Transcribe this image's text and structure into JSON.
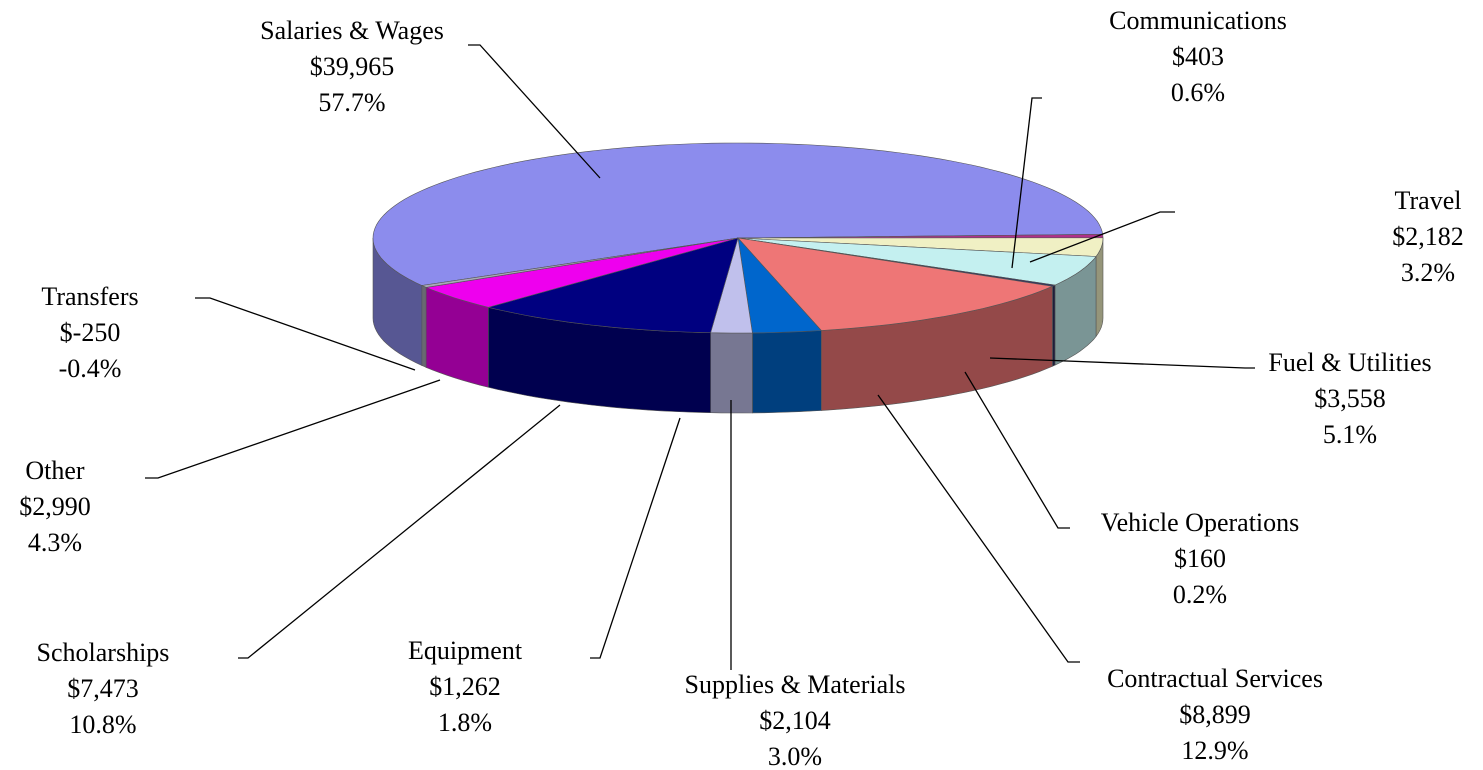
{
  "chart_data": {
    "type": "pie",
    "categories": [
      "Salaries & Wages",
      "Communications",
      "Travel",
      "Fuel & Utilities",
      "Vehicle Operations",
      "Contractual Services",
      "Supplies & Materials",
      "Equipment",
      "Scholarships",
      "Other",
      "Transfers"
    ],
    "values": [
      39965,
      403,
      2182,
      3558,
      160,
      8899,
      2104,
      1262,
      7473,
      2990,
      -250
    ],
    "value_labels": [
      "$39,965",
      "$403",
      "$2,182",
      "$3,558",
      "$160",
      "$8,899",
      "$2,104",
      "$1,262",
      "$7,473",
      "$2,990",
      "$-250"
    ],
    "percentages": [
      57.7,
      0.6,
      3.2,
      5.1,
      0.2,
      12.9,
      3.0,
      1.8,
      10.8,
      4.3,
      -0.4
    ],
    "percentage_labels": [
      "57.7%",
      "0.6%",
      "3.2%",
      "5.1%",
      "0.2%",
      "12.9%",
      "3.0%",
      "1.8%",
      "10.8%",
      "4.3%",
      "-0.4%"
    ],
    "colors": [
      "#8c8ced",
      "#b0308a",
      "#f0f0c4",
      "#c4f0f0",
      "#303060",
      "#ee7676",
      "#0066cc",
      "#c0c0ec",
      "#000080",
      "#ee00ee",
      "#a8a8b8"
    ]
  }
}
